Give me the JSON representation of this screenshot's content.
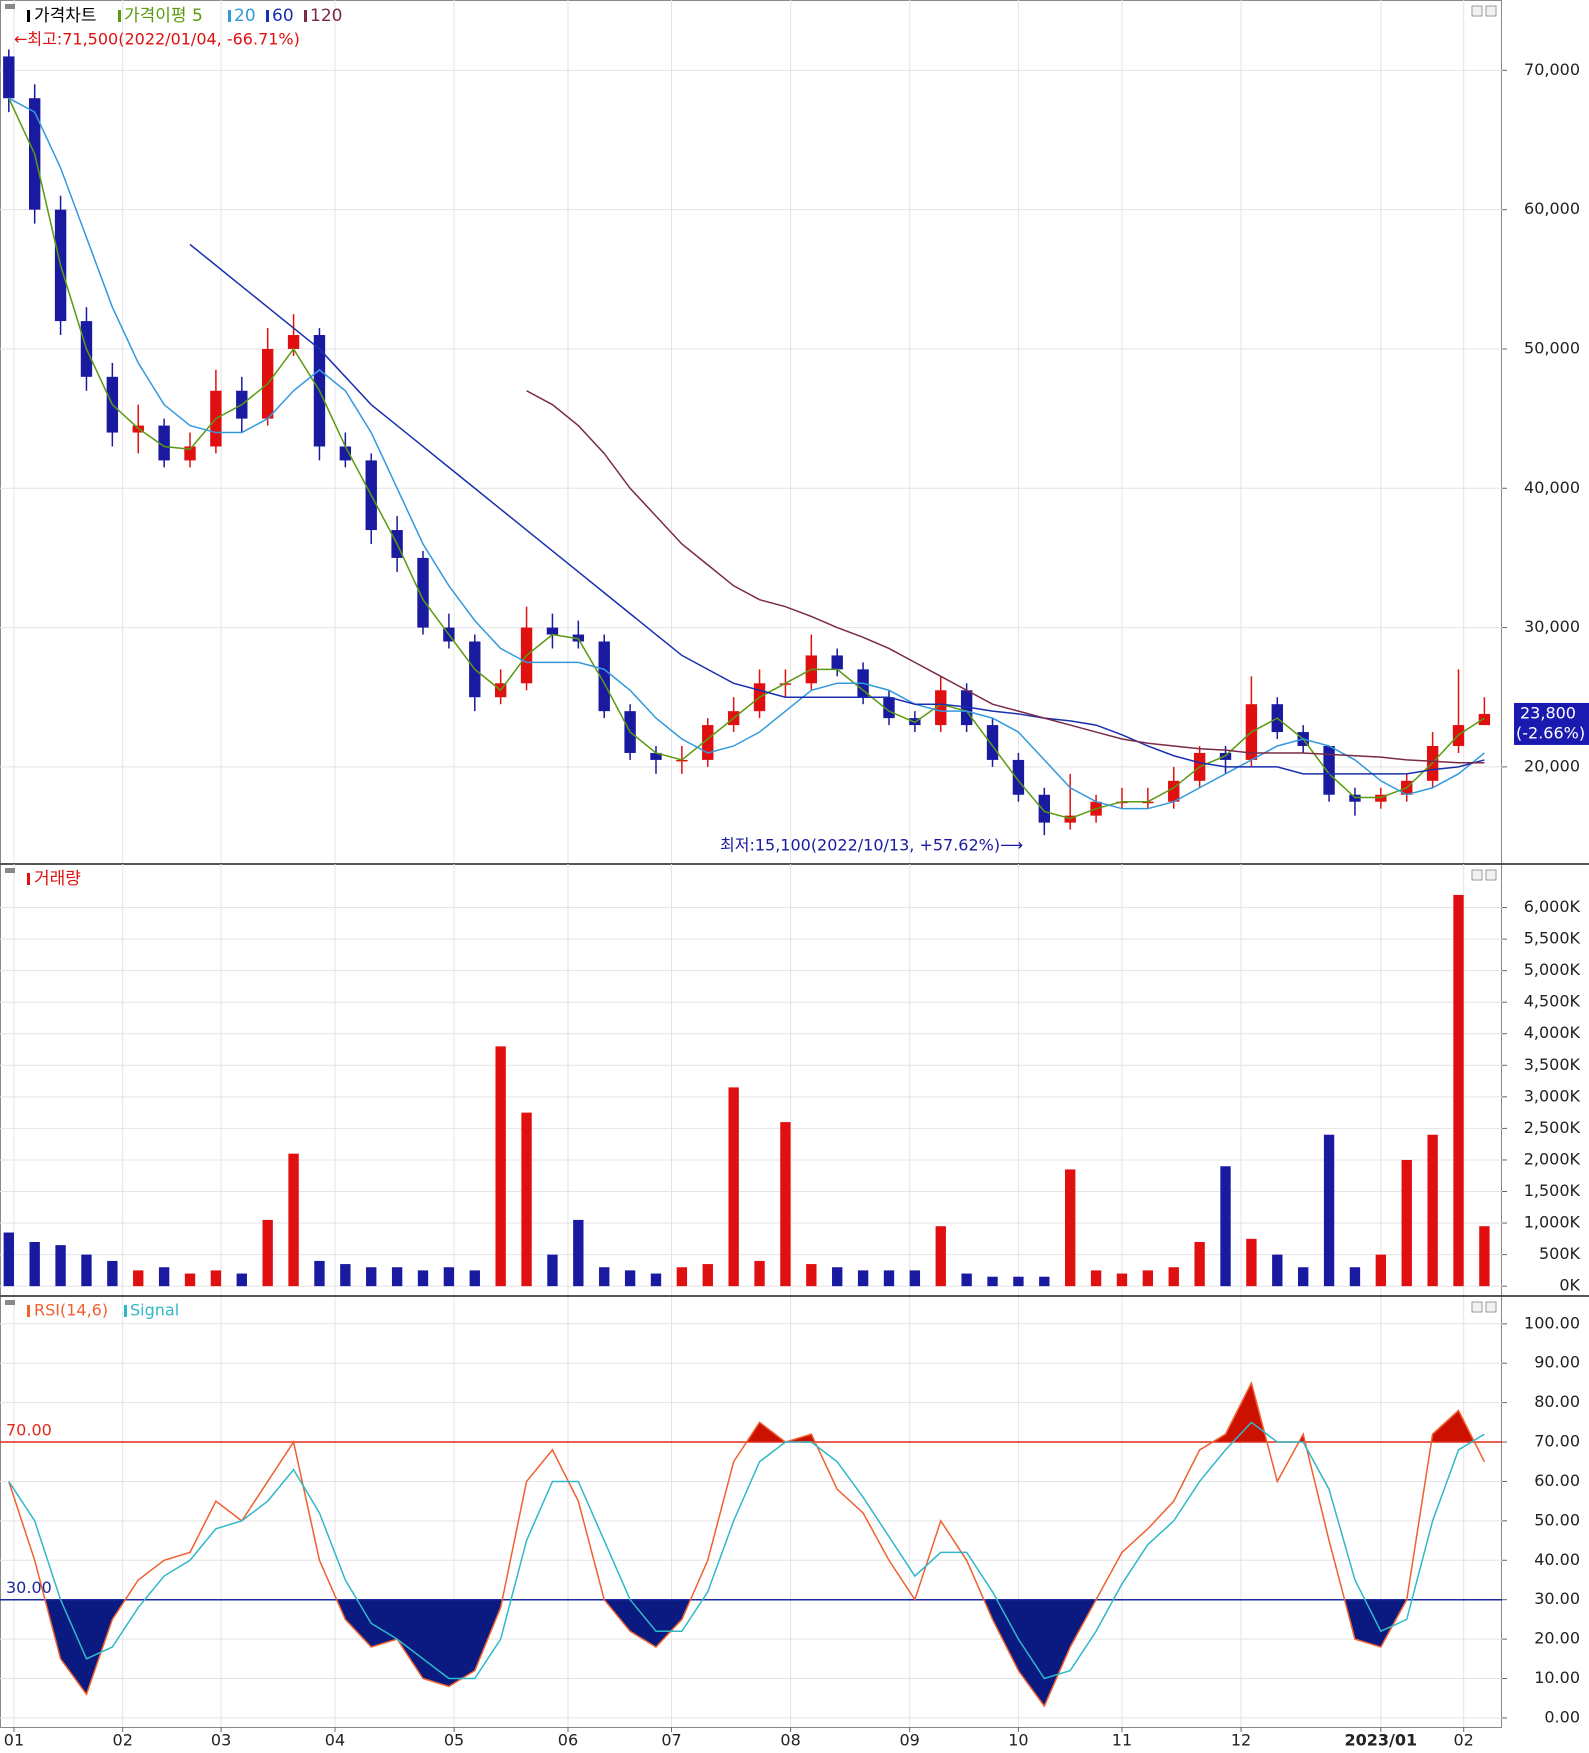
{
  "chart_data": [
    {
      "type": "candlestick",
      "name": "가격차트",
      "x": [
        0,
        5,
        10,
        15,
        20,
        25,
        30,
        35,
        40,
        45,
        50,
        55,
        60,
        65,
        70,
        75,
        80,
        85,
        90,
        95,
        100,
        105,
        110,
        115,
        120,
        125,
        130,
        135,
        140,
        145,
        150,
        155,
        160,
        165,
        170,
        175,
        180,
        185,
        190,
        195,
        200,
        205,
        210,
        215,
        220,
        225,
        230,
        235,
        240,
        245,
        250,
        255,
        260,
        265,
        270,
        275,
        280,
        285
      ],
      "open": [
        71000,
        68000,
        60000,
        52000,
        48000,
        44000,
        44500,
        42000,
        43000,
        47000,
        45000,
        50000,
        51000,
        43000,
        42000,
        37000,
        35000,
        30000,
        29000,
        25000,
        26000,
        30000,
        29500,
        29000,
        24000,
        21000,
        20500,
        20500,
        23000,
        24000,
        26000,
        26000,
        28000,
        27000,
        25000,
        23500,
        23000,
        25500,
        23000,
        20500,
        18000,
        16000,
        16500,
        17500,
        17500,
        17500,
        19000,
        21000,
        20500,
        24500,
        22500,
        21500,
        18000,
        17500,
        18000,
        19000,
        21500,
        23000
      ],
      "high": [
        71500,
        69000,
        61000,
        53000,
        49000,
        46000,
        45000,
        44000,
        48500,
        48000,
        51500,
        52500,
        51500,
        44000,
        42500,
        38000,
        35500,
        31000,
        29500,
        27000,
        31500,
        31000,
        30500,
        29500,
        24500,
        21500,
        21500,
        23500,
        25000,
        27000,
        27000,
        29500,
        28500,
        27500,
        25500,
        24000,
        26500,
        26000,
        23500,
        21000,
        18500,
        19500,
        18000,
        18500,
        18500,
        20000,
        21500,
        21500,
        26500,
        25000,
        23000,
        21500,
        18500,
        18500,
        19500,
        22500,
        27000,
        25000
      ],
      "low": [
        67000,
        59000,
        51000,
        47000,
        43000,
        42500,
        41500,
        41500,
        42500,
        44000,
        44500,
        49500,
        42000,
        41500,
        36000,
        34000,
        29500,
        28500,
        24000,
        24500,
        25500,
        28500,
        28500,
        23500,
        20500,
        19500,
        19500,
        20000,
        22500,
        23500,
        25000,
        25500,
        26500,
        24500,
        23000,
        22500,
        22500,
        22500,
        20000,
        17500,
        15100,
        15500,
        16000,
        17000,
        17000,
        17000,
        18500,
        19500,
        20000,
        22000,
        21000,
        17500,
        16500,
        17000,
        17500,
        18500,
        21000,
        23000
      ],
      "close": [
        68000,
        60000,
        52000,
        48000,
        44000,
        44500,
        42000,
        43000,
        47000,
        45000,
        50000,
        51000,
        43000,
        42000,
        37000,
        35000,
        30000,
        29000,
        25000,
        26000,
        30000,
        29500,
        29000,
        24000,
        21000,
        20500,
        20500,
        23000,
        24000,
        26000,
        26000,
        28000,
        27000,
        25000,
        23500,
        23000,
        25500,
        23000,
        20500,
        18000,
        16000,
        16500,
        17500,
        17500,
        17500,
        19000,
        21000,
        20500,
        24500,
        22500,
        21500,
        18000,
        17500,
        18000,
        19000,
        21500,
        23000,
        23800
      ],
      "up_color": "#e01010",
      "down_color": "#1a1aa0",
      "series": [
        {
          "name": "가격이평 5",
          "color": "#5a9a10",
          "values": [
            68000,
            64000,
            56000,
            50000,
            46000,
            44300,
            43000,
            42800,
            45000,
            46000,
            47500,
            50000,
            47000,
            43000,
            39500,
            36000,
            32000,
            29500,
            27000,
            25500,
            28000,
            29500,
            29200,
            26000,
            22500,
            21000,
            20500,
            22000,
            23500,
            25000,
            26000,
            27000,
            27000,
            25500,
            24000,
            23200,
            24500,
            24000,
            21500,
            19000,
            16800,
            16300,
            17000,
            17500,
            17500,
            18500,
            20000,
            20800,
            22500,
            23500,
            22000,
            19500,
            17800,
            17800,
            18500,
            20300,
            22300,
            23500
          ]
        },
        {
          "name": "20",
          "color": "#3399dd",
          "values": [
            68000,
            67000,
            63000,
            58000,
            53000,
            49000,
            46000,
            44500,
            44000,
            44000,
            45000,
            47000,
            48500,
            47000,
            44000,
            40000,
            36000,
            33000,
            30500,
            28500,
            27500,
            27500,
            27500,
            27000,
            25500,
            23500,
            22000,
            21000,
            21500,
            22500,
            24000,
            25500,
            26000,
            26000,
            25500,
            24500,
            24000,
            24000,
            23500,
            22500,
            20500,
            18500,
            17500,
            17000,
            17000,
            17500,
            18500,
            19500,
            20500,
            21500,
            22000,
            21500,
            20500,
            19000,
            18000,
            18500,
            19500,
            21000
          ]
        },
        {
          "name": "60",
          "color": "#1a2fb0",
          "values": [
            null,
            null,
            null,
            null,
            null,
            null,
            null,
            57500,
            56000,
            54500,
            53000,
            51500,
            50000,
            48000,
            46000,
            44500,
            43000,
            41500,
            40000,
            38500,
            37000,
            35500,
            34000,
            32500,
            31000,
            29500,
            28000,
            27000,
            26000,
            25500,
            25000,
            25000,
            25000,
            25000,
            25000,
            24500,
            24500,
            24300,
            24000,
            23800,
            23500,
            23300,
            23000,
            22300,
            21500,
            20800,
            20300,
            20000,
            20000,
            20000,
            19500,
            19500,
            19500,
            19500,
            19500,
            19800,
            20000,
            20500
          ]
        },
        {
          "name": "120",
          "color": "#7a2a48",
          "values": [
            null,
            null,
            null,
            null,
            null,
            null,
            null,
            null,
            null,
            null,
            null,
            null,
            null,
            null,
            null,
            null,
            null,
            null,
            null,
            null,
            47000,
            46000,
            44500,
            42500,
            40000,
            38000,
            36000,
            34500,
            33000,
            32000,
            31500,
            30800,
            30000,
            29300,
            28500,
            27500,
            26500,
            25500,
            24500,
            24000,
            23500,
            23000,
            22500,
            22000,
            21700,
            21500,
            21300,
            21200,
            21000,
            21000,
            21000,
            20900,
            20800,
            20700,
            20500,
            20400,
            20300,
            20300
          ]
        }
      ],
      "xlim": [
        -1.7,
        288.4
      ],
      "ylim": [
        13100,
        75050
      ],
      "yticks": [
        {
          "value": 20000,
          "label": "20,000"
        },
        {
          "value": 30000,
          "label": "30,000"
        },
        {
          "value": 40000,
          "label": "40,000"
        },
        {
          "value": 50000,
          "label": "50,000"
        },
        {
          "value": 60000,
          "label": "60,000"
        },
        {
          "value": 70000,
          "label": "70,000"
        }
      ],
      "grid": true,
      "high_annotation": "←최고:71,500(2022/01/04, -66.71%)",
      "low_annotation": "최저:15,100(2022/10/13, +57.62%)⟶",
      "last_label": "23,800",
      "last_change": "(-2.66%)"
    },
    {
      "type": "bar",
      "name": "거래량",
      "x": [
        0,
        5,
        10,
        15,
        20,
        25,
        30,
        35,
        40,
        45,
        50,
        55,
        60,
        65,
        70,
        75,
        80,
        85,
        90,
        95,
        100,
        105,
        110,
        115,
        120,
        125,
        130,
        135,
        140,
        145,
        150,
        155,
        160,
        165,
        170,
        175,
        180,
        185,
        190,
        195,
        200,
        205,
        210,
        215,
        220,
        225,
        230,
        235,
        240,
        245,
        250,
        255,
        260,
        265,
        270,
        275,
        280,
        285
      ],
      "values": [
        850,
        700,
        650,
        500,
        400,
        250,
        300,
        200,
        250,
        200,
        1050,
        2100,
        400,
        350,
        300,
        300,
        250,
        300,
        250,
        3800,
        2750,
        500,
        1050,
        300,
        250,
        200,
        300,
        350,
        3150,
        400,
        2600,
        350,
        300,
        250,
        250,
        250,
        950,
        200,
        150,
        150,
        150,
        1850,
        250,
        200,
        250,
        300,
        700,
        1900,
        750,
        500,
        300,
        2400,
        300,
        500,
        2000,
        2400,
        6200,
        950
      ],
      "xlim": [
        -1.7,
        288.4
      ],
      "ylim": [
        -140,
        6690
      ],
      "yticks": [
        {
          "value": 0,
          "label": "0K"
        },
        {
          "value": 500,
          "label": "500K"
        },
        {
          "value": 1000,
          "label": "1,000K"
        },
        {
          "value": 1500,
          "label": "1,500K"
        },
        {
          "value": 2000,
          "label": "2,000K"
        },
        {
          "value": 2500,
          "label": "2,500K"
        },
        {
          "value": 3000,
          "label": "3,000K"
        },
        {
          "value": 3500,
          "label": "3,500K"
        },
        {
          "value": 4000,
          "label": "4,000K"
        },
        {
          "value": 4500,
          "label": "4,500K"
        },
        {
          "value": 5000,
          "label": "5,000K"
        },
        {
          "value": 5500,
          "label": "5,500K"
        },
        {
          "value": 6000,
          "label": "6,000K"
        }
      ],
      "grid": true
    },
    {
      "type": "line",
      "x": [
        0,
        5,
        10,
        15,
        20,
        25,
        30,
        35,
        40,
        45,
        50,
        55,
        60,
        65,
        70,
        75,
        80,
        85,
        90,
        95,
        100,
        105,
        110,
        115,
        120,
        125,
        130,
        135,
        140,
        145,
        150,
        155,
        160,
        165,
        170,
        175,
        180,
        185,
        190,
        195,
        200,
        205,
        210,
        215,
        220,
        225,
        230,
        235,
        240,
        245,
        250,
        255,
        260,
        265,
        270,
        275,
        280,
        285
      ],
      "series": [
        {
          "name": "RSI(14,6)",
          "color": "#f06030",
          "values": [
            60,
            40,
            15,
            6,
            25,
            35,
            40,
            42,
            55,
            50,
            60,
            70,
            40,
            25,
            18,
            20,
            10,
            8,
            12,
            28,
            60,
            68,
            55,
            30,
            22,
            18,
            25,
            40,
            65,
            75,
            70,
            72,
            58,
            52,
            40,
            30,
            50,
            40,
            25,
            12,
            3,
            18,
            30,
            42,
            48,
            55,
            68,
            72,
            85,
            60,
            72,
            45,
            20,
            18,
            30,
            72,
            78,
            65
          ]
        },
        {
          "name": "Signal",
          "color": "#30b8c8",
          "values": [
            60,
            50,
            30,
            15,
            18,
            28,
            36,
            40,
            48,
            50,
            55,
            63,
            52,
            35,
            24,
            20,
            15,
            10,
            10,
            20,
            45,
            60,
            60,
            45,
            30,
            22,
            22,
            32,
            50,
            65,
            70,
            70,
            65,
            56,
            46,
            36,
            42,
            42,
            32,
            20,
            10,
            12,
            22,
            34,
            44,
            50,
            60,
            68,
            75,
            70,
            70,
            58,
            35,
            22,
            25,
            50,
            68,
            72
          ]
        }
      ],
      "levels": [
        {
          "value": 70,
          "label": "70.00",
          "color": "#e02a1a",
          "fill": "#cc1100"
        },
        {
          "value": 30,
          "label": "30.00",
          "color": "#1a2a9a",
          "fill": "#0a1a80"
        }
      ],
      "xlim": [
        -1.7,
        288.4
      ],
      "ylim": [
        -2.3,
        106.8
      ],
      "yticks": [
        {
          "value": 0,
          "label": "0.00"
        },
        {
          "value": 10,
          "label": "10.00"
        },
        {
          "value": 20,
          "label": "20.00"
        },
        {
          "value": 30,
          "label": "30.00"
        },
        {
          "value": 40,
          "label": "40.00"
        },
        {
          "value": 50,
          "label": "50.00"
        },
        {
          "value": 60,
          "label": "60.00"
        },
        {
          "value": 70,
          "label": "70.00"
        },
        {
          "value": 80,
          "label": "80.00"
        },
        {
          "value": 90,
          "label": "90.00"
        },
        {
          "value": 100,
          "label": "100.00"
        }
      ],
      "xticks": [
        {
          "value": 1,
          "label": "01"
        },
        {
          "value": 22,
          "label": "02"
        },
        {
          "value": 41,
          "label": "03"
        },
        {
          "value": 63,
          "label": "04"
        },
        {
          "value": 86,
          "label": "05"
        },
        {
          "value": 108,
          "label": "06"
        },
        {
          "value": 128,
          "label": "07"
        },
        {
          "value": 151,
          "label": "08"
        },
        {
          "value": 174,
          "label": "09"
        },
        {
          "value": 195,
          "label": "10"
        },
        {
          "value": 215,
          "label": "11"
        },
        {
          "value": 238,
          "label": "12"
        },
        {
          "value": 265,
          "label": "2023/01"
        },
        {
          "value": 281,
          "label": "02"
        }
      ],
      "grid": true
    }
  ]
}
